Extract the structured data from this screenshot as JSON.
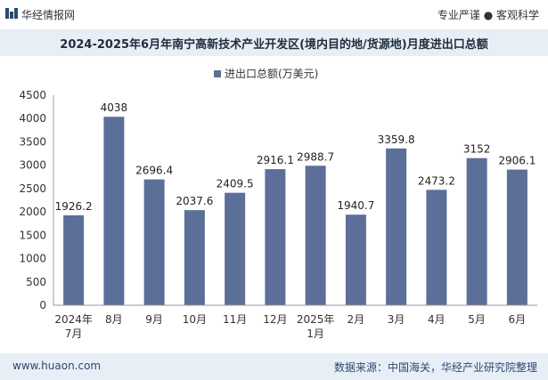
{
  "header": {
    "brand": "华经情报网",
    "tagline": "专业严谨 ● 客观科学"
  },
  "footer": {
    "website": "www.huaon.com",
    "source": "数据来源：中国海关，华经产业研究院整理"
  },
  "colors": {
    "bar": "#5b6f99",
    "title_band": "#e8eef6",
    "footer_band": "#e8eef6"
  },
  "chart_data": {
    "type": "bar",
    "title": "2024-2025年6月年南宁高新技术产业开发区(境内目的地/货源地)月度进出口总额",
    "legend": "进出口总额(万美元)",
    "categories": [
      "2024年7月",
      "8月",
      "9月",
      "10月",
      "11月",
      "12月",
      "2025年1月",
      "2月",
      "3月",
      "4月",
      "5月",
      "6月"
    ],
    "values": [
      1926.2,
      4038,
      2696.4,
      2037.6,
      2409.5,
      2916.1,
      2988.7,
      1940.7,
      3359.8,
      2473.2,
      3152,
      2906.1
    ],
    "value_labels": [
      "1926.2",
      "4038",
      "2696.4",
      "2037.6",
      "2409.5",
      "2916.1",
      "2988.7",
      "1940.7",
      "3359.8",
      "2473.2",
      "3152",
      "2906.1"
    ],
    "y_ticks": [
      "0",
      "500",
      "1000",
      "1500",
      "2000",
      "2500",
      "3000",
      "3500",
      "4000",
      "4500"
    ],
    "ylim": [
      0,
      4500
    ],
    "xlabel": "",
    "ylabel": ""
  }
}
